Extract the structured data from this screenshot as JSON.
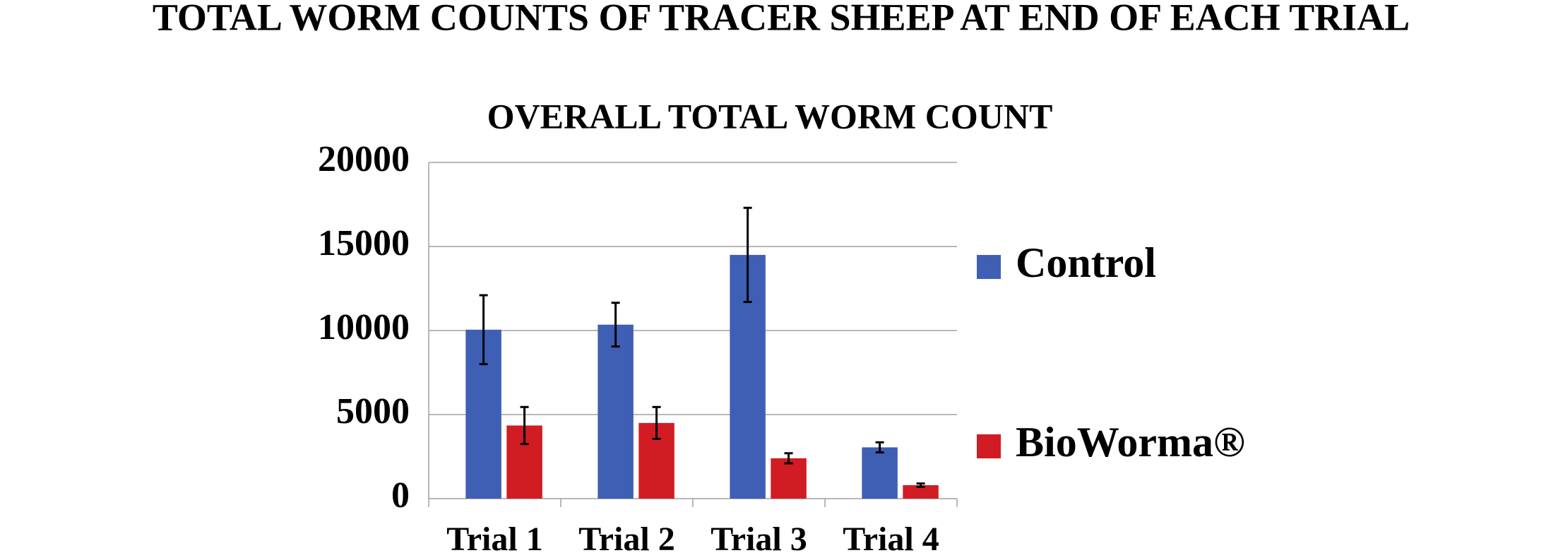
{
  "chart_data": {
    "type": "bar",
    "title": "TOTAL WORM COUNTS OF TRACER SHEEP AT END OF EACH TRIAL",
    "subtitle": "OVERALL TOTAL WORM COUNT",
    "categories": [
      "Trial 1",
      "Trial 2",
      "Trial 3",
      "Trial 4"
    ],
    "series": [
      {
        "name": "Control",
        "color": "#3f5fb5",
        "values": [
          10050,
          10350,
          14500,
          3050
        ],
        "errors": [
          2050,
          1300,
          2800,
          300
        ]
      },
      {
        "name": "BioWorma®",
        "color": "#d01c22",
        "values": [
          4350,
          4500,
          2400,
          800
        ],
        "errors": [
          1100,
          950,
          300,
          100
        ]
      }
    ],
    "ylim": [
      0,
      20000
    ],
    "yticks": [
      0,
      5000,
      10000,
      15000,
      20000
    ],
    "grid": true,
    "legend": "right"
  }
}
